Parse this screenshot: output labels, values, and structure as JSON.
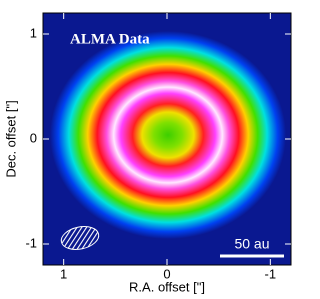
{
  "chart_data": {
    "type": "image",
    "title": "ALMA Data",
    "scale_bar_label": "50 au",
    "x_label": "R.A. offset [\"]",
    "y_label": "Dec. offset [\"]",
    "xlim": [
      1.2,
      -1.2
    ],
    "ylim": [
      -1.2,
      1.2
    ],
    "xticks": [
      1,
      0,
      -1
    ],
    "yticks": [
      -1,
      0,
      1
    ]
  }
}
